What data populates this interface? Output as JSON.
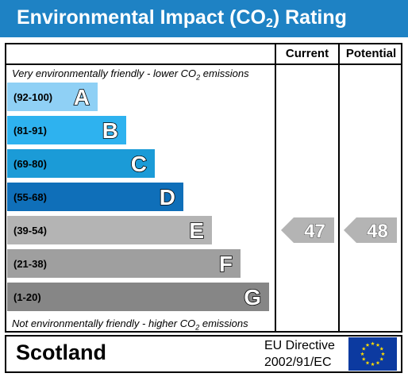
{
  "header": {
    "title_main": "Environmental Impact (CO",
    "title_sub": "2",
    "title_end": ") Rating",
    "bg_color": "#1e82c4"
  },
  "columns": {
    "current": "Current",
    "potential": "Potential"
  },
  "notes": {
    "top_a": "Very environmentally friendly - lower CO",
    "top_sub": "2",
    "top_b": " emissions",
    "bottom_a": "Not environmentally friendly - higher CO",
    "bottom_sub": "2",
    "bottom_b": " emissions"
  },
  "chart_data": {
    "type": "bar",
    "categories": [
      "A",
      "B",
      "C",
      "D",
      "E",
      "F",
      "G"
    ],
    "ranges": [
      "(92-100)",
      "(81-91)",
      "(69-80)",
      "(55-68)",
      "(39-54)",
      "(21-38)",
      "(1-20)"
    ],
    "colors": [
      "#8fd0f5",
      "#2eb2ef",
      "#1b9bd7",
      "#0f6fb9",
      "#b4b4b4",
      "#9f9f9f",
      "#868686"
    ],
    "current": {
      "value": 47,
      "band": "E"
    },
    "potential": {
      "value": 48,
      "band": "E"
    },
    "arrow_color": "#b4b4b4"
  },
  "footer": {
    "region": "Scotland",
    "directive_line1": "EU Directive",
    "directive_line2": "2002/91/EC",
    "flag_color": "#0c3aa0",
    "star_color": "#ffdd00"
  }
}
